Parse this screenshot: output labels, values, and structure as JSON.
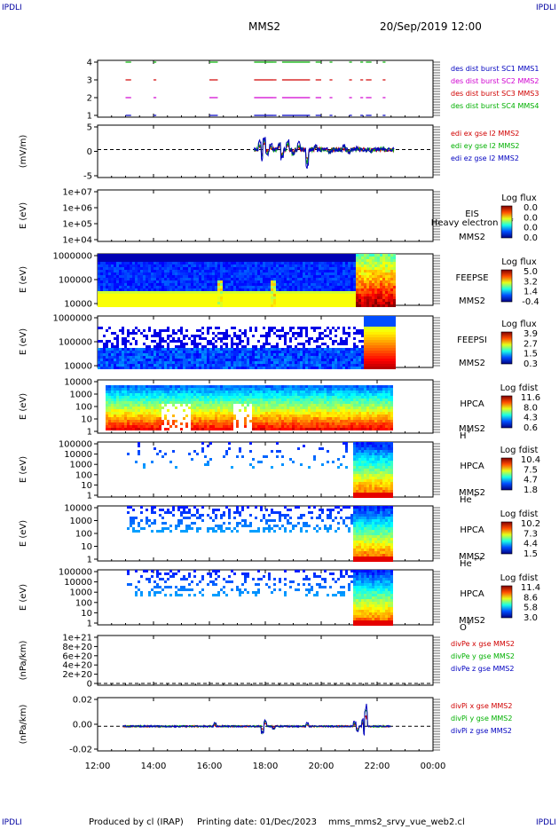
{
  "header": {
    "ipdli": "IPDLI",
    "title": "MMS2",
    "datetime": "20/Sep/2019 12:00"
  },
  "footer": {
    "produced": "Produced by cl (IRAP)",
    "printing": "Printing date: 01/Dec/2023",
    "file": "mms_mms2_srvy_vue_web2.cl"
  },
  "colors": {
    "mms1": "#0000c0",
    "mms2": "#d000d0",
    "mms3": "#d00000",
    "mms4": "#00b000",
    "x": "#d00000",
    "y": "#00b000",
    "z": "#0000c0"
  },
  "chart_data": {
    "type": "spectrogram-stack",
    "xaxis": {
      "range_hours": [
        12,
        24
      ],
      "tick_labels": [
        "12:00",
        "14:00",
        "16:00",
        "18:00",
        "20:00",
        "22:00",
        "00:00"
      ]
    },
    "panels": [
      {
        "id": "burst",
        "type": "timeline",
        "ylim": [
          0.5,
          4.5
        ],
        "yticks": [
          "1",
          "2",
          "3",
          "4"
        ],
        "legend": [
          "des dist burst SC1 MMS1",
          "des dist burst SC2 MMS2",
          "des dist burst SC3 MMS3",
          "des dist burst SC4 MMS4"
        ],
        "intervals": [
          [
            13.0,
            13.2
          ],
          [
            14.0,
            14.1
          ],
          [
            16.0,
            16.3
          ],
          [
            17.6,
            18.3
          ],
          [
            18.3,
            18.4
          ],
          [
            18.6,
            19.6
          ],
          [
            19.8,
            20.0
          ],
          [
            20.3,
            20.4
          ],
          [
            21.0,
            21.1
          ],
          [
            21.4,
            21.5
          ],
          [
            21.6,
            21.8
          ],
          [
            22.2,
            22.3
          ]
        ]
      },
      {
        "id": "efield",
        "type": "line",
        "ylabel": "(mV/m)",
        "ylim": [
          -8,
          7
        ],
        "yticks": [
          "-5",
          "0",
          "5"
        ],
        "legend": [
          "edi ex gse l2 MMS2",
          "edi ey gse l2 MMS2",
          "edi ez gse l2 MMS2"
        ],
        "extent_hours": [
          17.6,
          22.6
        ],
        "samples": [
          [
            17.8,
            2.5
          ],
          [
            17.9,
            -3
          ],
          [
            17.95,
            4
          ],
          [
            18.05,
            -1.5
          ],
          [
            18.2,
            1.5
          ],
          [
            18.5,
            2
          ],
          [
            18.6,
            -2.5
          ],
          [
            18.8,
            3
          ],
          [
            19.0,
            -1.5
          ],
          [
            19.2,
            2
          ],
          [
            19.5,
            -5
          ],
          [
            19.8,
            1
          ],
          [
            20.3,
            -1
          ],
          [
            20.8,
            1
          ],
          [
            21.0,
            -1
          ],
          [
            21.3,
            0.5
          ],
          [
            21.8,
            -0.5
          ],
          [
            22.2,
            0.5
          ],
          [
            22.5,
            -0.5
          ]
        ]
      },
      {
        "id": "eis",
        "type": "spectrogram",
        "ylabel": "E (eV)",
        "yticks": [
          "1e+04",
          "1e+05",
          "1e+06",
          "1e+07"
        ],
        "instrument": "EIS",
        "species": "Heavy electron tof",
        "probe": "MMS2",
        "cbar_title": "Log flux",
        "cbar_ticks": [
          "0.0",
          "0.0",
          "0.0",
          "0.0"
        ]
      },
      {
        "id": "feepse",
        "type": "spectrogram",
        "ylabel": "E (eV)",
        "yticks": [
          "10000",
          "100000",
          "1000000"
        ],
        "instrument": "FEEPSE",
        "probe": "MMS2",
        "cbar_title": "Log flux",
        "cbar_ticks": [
          "5.0",
          "3.2",
          "1.4",
          "-0.4"
        ]
      },
      {
        "id": "feepsi",
        "type": "spectrogram",
        "ylabel": "E (eV)",
        "yticks": [
          "10000",
          "100000",
          "1000000"
        ],
        "instrument": "FEEPSI",
        "probe": "MMS2",
        "cbar_title": "Log flux",
        "cbar_ticks": [
          "3.9",
          "2.7",
          "1.5",
          "0.3"
        ]
      },
      {
        "id": "hpca_h",
        "type": "spectrogram",
        "ylabel": "E (eV)",
        "yticks": [
          "1",
          "10",
          "100",
          "1000",
          "10000"
        ],
        "instrument": "HPCA",
        "probe": "MMS2",
        "species": "H",
        "charge": "+",
        "cbar_title": "Log fdist",
        "cbar_ticks": [
          "11.6",
          "8.0",
          "4.3",
          "0.6"
        ]
      },
      {
        "id": "hpca_he1",
        "type": "spectrogram",
        "ylabel": "E (eV)",
        "yticks": [
          "1",
          "10",
          "100",
          "1000",
          "10000",
          "100000"
        ],
        "instrument": "HPCA",
        "probe": "MMS2",
        "species": "He",
        "charge": "+",
        "cbar_title": "Log fdist",
        "cbar_ticks": [
          "10.4",
          "7.5",
          "4.7",
          "1.8"
        ]
      },
      {
        "id": "hpca_he2",
        "type": "spectrogram",
        "ylabel": "E (eV)",
        "yticks": [
          "1",
          "10",
          "100",
          "1000",
          "10000"
        ],
        "instrument": "HPCA",
        "probe": "MMS2",
        "species": "He",
        "charge": "++",
        "cbar_title": "Log fdist",
        "cbar_ticks": [
          "10.2",
          "7.3",
          "4.4",
          "1.5"
        ]
      },
      {
        "id": "hpca_o",
        "type": "spectrogram",
        "ylabel": "E (eV)",
        "yticks": [
          "1",
          "10",
          "100",
          "1000",
          "10000",
          "100000"
        ],
        "instrument": "HPCA",
        "probe": "MMS2",
        "species": "O",
        "charge": "+",
        "cbar_title": "Log fdist",
        "cbar_ticks": [
          "11.4",
          "8.6",
          "5.8",
          "3.0"
        ]
      },
      {
        "id": "divpe",
        "type": "line",
        "ylabel": "(nPa/km)",
        "yticks": [
          "0",
          "2e+20",
          "4e+20",
          "6e+20",
          "8e+20",
          "1e+21"
        ],
        "legend": [
          "divPe x gse MMS2",
          "divPe y gse MMS2",
          "divPe z gse MMS2"
        ]
      },
      {
        "id": "divpi",
        "type": "line",
        "ylabel": "(nPa/km)",
        "ylim": [
          -0.03,
          0.035
        ],
        "yticks": [
          "-0.02",
          "0.00",
          "0.02"
        ],
        "legend": [
          "divPi x gse MMS2",
          "divPi y gse MMS2",
          "divPi z gse MMS2"
        ],
        "samples": [
          [
            16.2,
            0.004
          ],
          [
            17.9,
            -0.01
          ],
          [
            18.0,
            0.008
          ],
          [
            18.3,
            -0.004
          ],
          [
            19.5,
            0.004
          ],
          [
            21.2,
            0.006
          ],
          [
            21.3,
            -0.006
          ],
          [
            21.5,
            0.01
          ],
          [
            21.55,
            -0.012
          ],
          [
            21.6,
            0.03
          ]
        ]
      }
    ]
  }
}
